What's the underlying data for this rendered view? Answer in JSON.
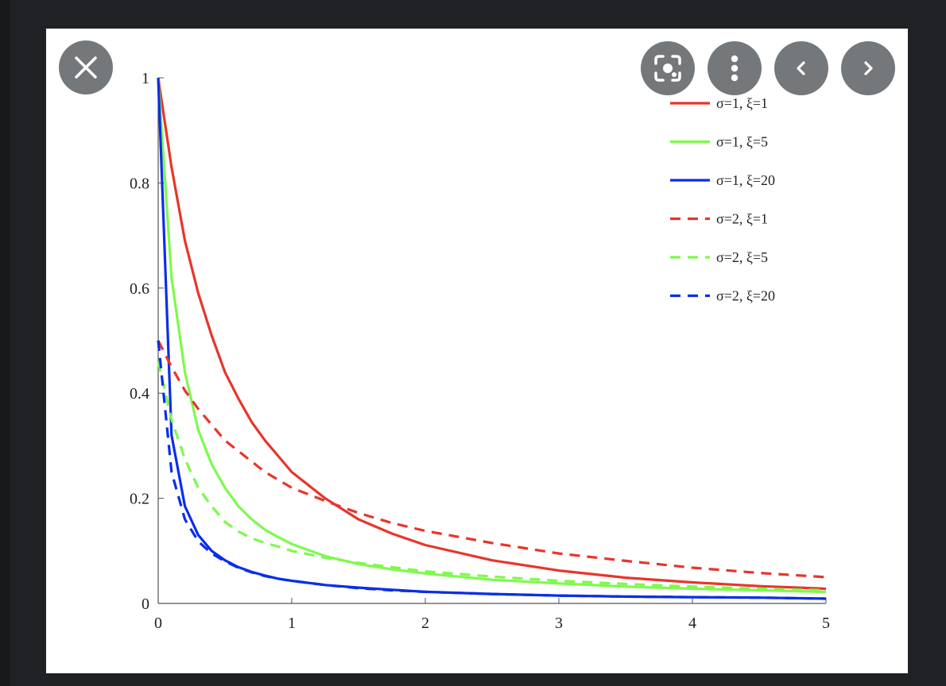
{
  "viewer": {
    "controls": [
      {
        "name": "close-icon",
        "label": "close"
      },
      {
        "name": "lens-icon",
        "label": "visual search"
      },
      {
        "name": "more-icon",
        "label": "more options"
      },
      {
        "name": "chevron-left-icon",
        "label": "previous"
      },
      {
        "name": "chevron-right-icon",
        "label": "next"
      }
    ],
    "control_color": "#75787b"
  },
  "chart_data": {
    "type": "line",
    "title": "",
    "xlabel": "",
    "ylabel": "",
    "xlim": [
      0,
      5
    ],
    "ylim": [
      0,
      1
    ],
    "xticks": [
      0,
      1,
      2,
      3,
      4,
      5
    ],
    "xtick_labels": [
      "0",
      "1",
      "2",
      "3",
      "4",
      "5"
    ],
    "yticks": [
      0,
      0.2,
      0.4,
      0.6,
      0.8,
      1
    ],
    "ytick_labels": [
      "0",
      "0.2",
      "0.4",
      "0.6",
      "0.8",
      "1"
    ],
    "grid": false,
    "legend_position": "top-right",
    "x": [
      0,
      0.1,
      0.2,
      0.3,
      0.4,
      0.5,
      0.6,
      0.7,
      0.8,
      0.9,
      1,
      1.25,
      1.5,
      1.75,
      2,
      2.5,
      3,
      3.5,
      4,
      4.5,
      5
    ],
    "series": [
      {
        "name": "σ=1, ξ=1",
        "color": "#e8352b",
        "dash": "solid",
        "values": [
          1.0,
          0.83,
          0.69,
          0.59,
          0.51,
          0.44,
          0.39,
          0.345,
          0.31,
          0.28,
          0.25,
          0.2,
          0.16,
          0.133,
          0.111,
          0.082,
          0.0625,
          0.049,
          0.04,
          0.033,
          0.028
        ]
      },
      {
        "name": "σ=1, ξ=5",
        "color": "#7dfa4c",
        "dash": "solid",
        "values": [
          1.0,
          0.62,
          0.44,
          0.33,
          0.265,
          0.22,
          0.185,
          0.16,
          0.14,
          0.126,
          0.113,
          0.09,
          0.075,
          0.065,
          0.057,
          0.045,
          0.038,
          0.032,
          0.028,
          0.025,
          0.022
        ]
      },
      {
        "name": "σ=1, ξ=20",
        "color": "#0a2ee8",
        "dash": "solid",
        "values": [
          1.0,
          0.32,
          0.185,
          0.13,
          0.1,
          0.082,
          0.069,
          0.06,
          0.053,
          0.047,
          0.043,
          0.035,
          0.03,
          0.026,
          0.022,
          0.018,
          0.015,
          0.013,
          0.012,
          0.011,
          0.009
        ]
      },
      {
        "name": "σ=2, ξ=1",
        "color": "#e8352b",
        "dash": "dashed",
        "values": [
          0.5,
          0.45,
          0.405,
          0.37,
          0.34,
          0.31,
          0.29,
          0.27,
          0.25,
          0.235,
          0.22,
          0.195,
          0.172,
          0.153,
          0.138,
          0.115,
          0.095,
          0.081,
          0.068,
          0.058,
          0.05
        ]
      },
      {
        "name": "σ=2, ξ=5",
        "color": "#7dfa4c",
        "dash": "dashed",
        "values": [
          0.46,
          0.35,
          0.275,
          0.22,
          0.185,
          0.155,
          0.137,
          0.124,
          0.115,
          0.108,
          0.1,
          0.087,
          0.077,
          0.069,
          0.061,
          0.051,
          0.043,
          0.037,
          0.032,
          0.028,
          0.025
        ]
      },
      {
        "name": "σ=2, ξ=20",
        "color": "#0a2ee8",
        "dash": "dashed",
        "values": [
          0.5,
          0.25,
          0.16,
          0.118,
          0.095,
          0.08,
          0.068,
          0.059,
          0.052,
          0.047,
          0.043,
          0.035,
          0.029,
          0.025,
          0.022,
          0.018,
          0.015,
          0.013,
          0.012,
          0.011,
          0.009
        ]
      }
    ]
  }
}
